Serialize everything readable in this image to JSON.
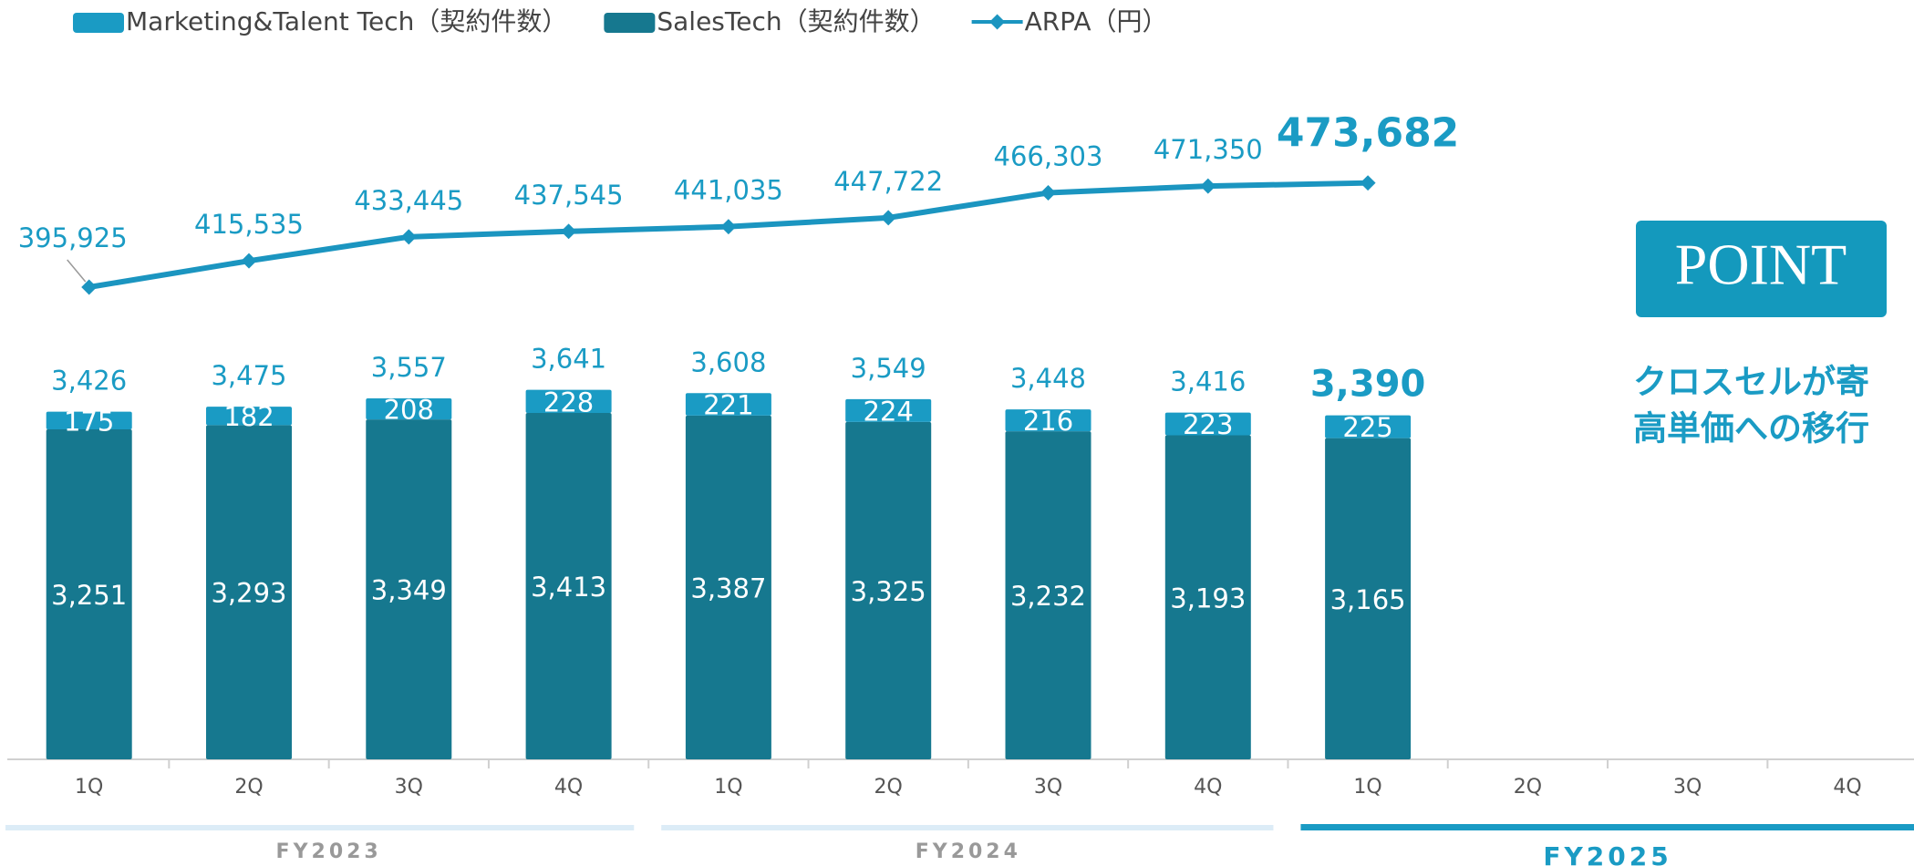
{
  "chart_data": {
    "type": "bar",
    "stacked": true,
    "categories": [
      "1Q",
      "2Q",
      "3Q",
      "4Q",
      "1Q",
      "2Q",
      "3Q",
      "4Q",
      "1Q",
      "2Q",
      "3Q",
      "4Q"
    ],
    "groups": [
      {
        "label": "FY2023",
        "span": [
          0,
          3
        ]
      },
      {
        "label": "FY2024",
        "span": [
          4,
          7
        ]
      },
      {
        "label": "FY2025",
        "span": [
          8,
          11
        ]
      }
    ],
    "series": [
      {
        "name": "Marketing&Talent Tech（契約件数）",
        "color": "#1a9bc4",
        "values": [
          175,
          182,
          208,
          228,
          221,
          224,
          216,
          223,
          225,
          null,
          null,
          null
        ]
      },
      {
        "name": "SalesTech（契約件数）",
        "color": "#16788f",
        "values": [
          3251,
          3293,
          3349,
          3413,
          3387,
          3325,
          3232,
          3193,
          3165,
          null,
          null,
          null
        ],
        "value_labels": [
          "3,251",
          "3,293",
          "3,349",
          "3,413",
          "3,387",
          "3,325",
          "3,232",
          "3,193",
          "3,165",
          null,
          null,
          null
        ]
      },
      {
        "name": "ARPA（円）",
        "type": "line",
        "axis": "y2",
        "color": "#1b95c0",
        "values": [
          395925,
          415535,
          433445,
          437545,
          441035,
          447722,
          466303,
          471350,
          473682,
          null,
          null,
          null
        ],
        "value_labels": [
          "395,925",
          "415,535",
          "433,445",
          "437,545",
          "441,035",
          "447,722",
          "466,303",
          "471,350",
          "473,682",
          null,
          null,
          null
        ]
      }
    ],
    "totals": [
      3426,
      3475,
      3557,
      3641,
      3608,
      3549,
      3448,
      3416,
      3390,
      null,
      null,
      null
    ],
    "total_labels": [
      "3,426",
      "3,475",
      "3,557",
      "3,641",
      "3,608",
      "3,549",
      "3,448",
      "3,416",
      "3,390",
      null,
      null,
      null
    ],
    "highlight_index": 8,
    "ylim": [
      0,
      6000
    ],
    "y2lim": [
      300000,
      500000
    ],
    "point_box": "POINT",
    "point_text": [
      "クロスセルが寄",
      "高単価への移行"
    ]
  }
}
